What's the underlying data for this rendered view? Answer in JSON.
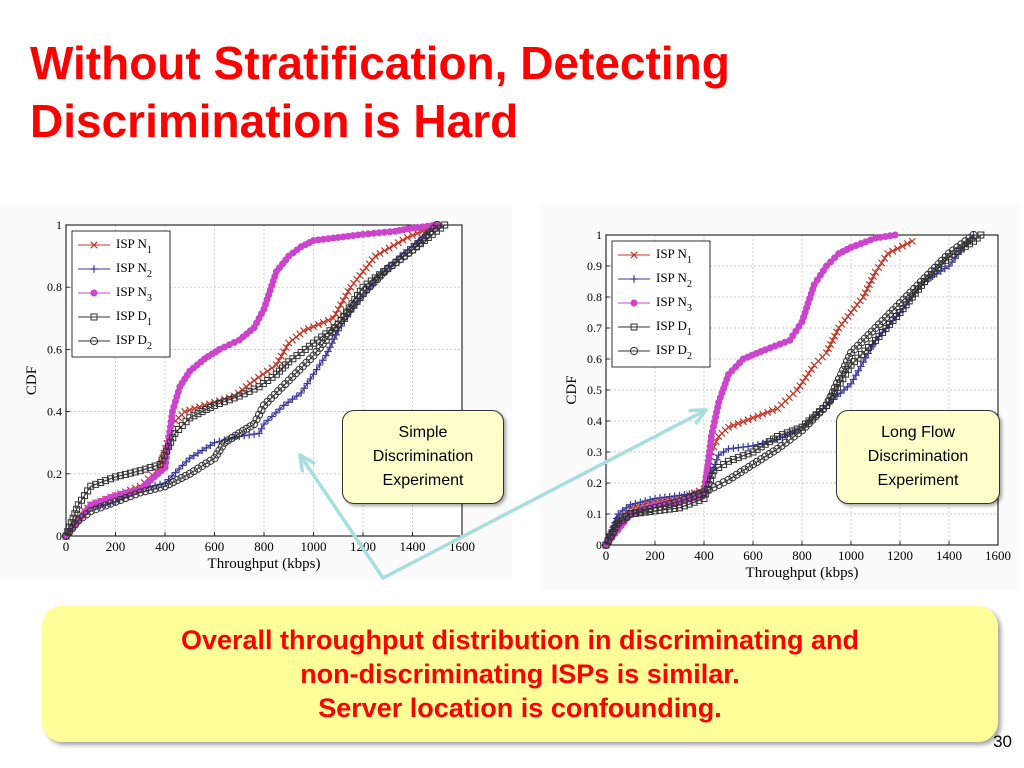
{
  "slide": {
    "title": "Without Stratification, Detecting Discrimination is Hard",
    "page_number": "30",
    "callouts": {
      "left": [
        "Simple",
        "Discrimination",
        "Experiment"
      ],
      "right": [
        "Long Flow",
        "Discrimination",
        "Experiment"
      ]
    },
    "summary": [
      "Overall throughput distribution in discriminating and",
      "non-discriminating ISPs is similar.",
      "Server location is confounding."
    ]
  },
  "colors": {
    "title": "#ff0000",
    "summary_text": "#ff0000",
    "callout_bg": "#ffffcc",
    "summary_bg": "#ffff99",
    "arrow": "#a8dede"
  },
  "chart_data": [
    {
      "type": "line",
      "xlabel": "Throughput (kbps)",
      "ylabel": "CDF",
      "xlim": [
        0,
        1600
      ],
      "ylim": [
        0,
        1
      ],
      "xticks": [
        0,
        200,
        400,
        600,
        800,
        1000,
        1200,
        1400,
        1600
      ],
      "yticks": [
        0,
        0.2,
        0.4,
        0.6,
        0.8,
        1
      ],
      "ytick_labels": [
        "0",
        "0.2",
        "0.4",
        "0.6",
        "0.8",
        "1"
      ],
      "grid": true,
      "legend": "top-left",
      "series": [
        {
          "name": "ISP N",
          "sub": "1",
          "color": "#c0392b",
          "marker": "x",
          "x": [
            0,
            50,
            100,
            200,
            300,
            380,
            430,
            480,
            560,
            680,
            760,
            850,
            900,
            960,
            1080,
            1150,
            1250,
            1380,
            1500
          ],
          "y": [
            0,
            0.06,
            0.1,
            0.13,
            0.16,
            0.22,
            0.36,
            0.4,
            0.42,
            0.45,
            0.5,
            0.55,
            0.62,
            0.66,
            0.7,
            0.8,
            0.9,
            0.96,
            1
          ]
        },
        {
          "name": "ISP N",
          "sub": "2",
          "color": "#3a3a9a",
          "marker": "+",
          "x": [
            0,
            50,
            100,
            200,
            300,
            400,
            500,
            600,
            700,
            780,
            800,
            880,
            950,
            1000,
            1050,
            1100,
            1150,
            1250,
            1350,
            1500
          ],
          "y": [
            0,
            0.05,
            0.09,
            0.11,
            0.15,
            0.17,
            0.25,
            0.3,
            0.32,
            0.33,
            0.36,
            0.42,
            0.46,
            0.52,
            0.58,
            0.66,
            0.72,
            0.82,
            0.9,
            1
          ]
        },
        {
          "name": "ISP N",
          "sub": "3",
          "color": "#cc44cc",
          "marker": "*",
          "x": [
            0,
            50,
            100,
            200,
            300,
            400,
            430,
            460,
            500,
            560,
            620,
            700,
            760,
            800,
            850,
            900,
            950,
            1000,
            1100,
            1200,
            1330,
            1400,
            1500
          ],
          "y": [
            0,
            0.05,
            0.1,
            0.13,
            0.15,
            0.22,
            0.4,
            0.48,
            0.53,
            0.57,
            0.6,
            0.63,
            0.67,
            0.73,
            0.85,
            0.9,
            0.93,
            0.95,
            0.96,
            0.97,
            0.98,
            0.99,
            1
          ]
        },
        {
          "name": "ISP D",
          "sub": "1",
          "color": "#333333",
          "marker": "square",
          "x": [
            0,
            50,
            100,
            200,
            300,
            380,
            440,
            500,
            600,
            700,
            780,
            850,
            900,
            1000,
            1100,
            1200,
            1300,
            1400,
            1480,
            1530
          ],
          "y": [
            0,
            0.1,
            0.16,
            0.19,
            0.21,
            0.23,
            0.33,
            0.38,
            0.42,
            0.45,
            0.48,
            0.52,
            0.56,
            0.62,
            0.68,
            0.8,
            0.86,
            0.92,
            0.97,
            1
          ]
        },
        {
          "name": "ISP D",
          "sub": "2",
          "color": "#333333",
          "marker": "circle",
          "x": [
            0,
            50,
            100,
            200,
            300,
            400,
            500,
            600,
            640,
            700,
            760,
            800,
            900,
            1000,
            1100,
            1200,
            1300,
            1400,
            1500
          ],
          "y": [
            0,
            0.05,
            0.08,
            0.11,
            0.14,
            0.16,
            0.2,
            0.25,
            0.3,
            0.33,
            0.36,
            0.42,
            0.5,
            0.58,
            0.68,
            0.78,
            0.86,
            0.92,
            1
          ]
        }
      ]
    },
    {
      "type": "line",
      "xlabel": "Throughput (kbps)",
      "ylabel": "CDF",
      "xlim": [
        0,
        1600
      ],
      "ylim": [
        0,
        1
      ],
      "xticks": [
        0,
        200,
        400,
        600,
        800,
        1000,
        1200,
        1400,
        1600
      ],
      "yticks": [
        0,
        0.1,
        0.2,
        0.3,
        0.4,
        0.5,
        0.6,
        0.7,
        0.8,
        0.9,
        1
      ],
      "ytick_labels": [
        "0",
        "0.1",
        "0.2",
        "0.3",
        "0.4",
        "0.5",
        "0.6",
        "0.7",
        "0.8",
        "0.9",
        "1"
      ],
      "grid": true,
      "legend": "top-left",
      "series": [
        {
          "name": "ISP N",
          "sub": "1",
          "color": "#c0392b",
          "marker": "x",
          "x": [
            0,
            50,
            100,
            200,
            300,
            400,
            430,
            460,
            500,
            600,
            700,
            780,
            850,
            900,
            950,
            1000,
            1050,
            1100,
            1150,
            1250
          ],
          "y": [
            0,
            0.08,
            0.12,
            0.14,
            0.15,
            0.18,
            0.3,
            0.35,
            0.38,
            0.41,
            0.44,
            0.5,
            0.58,
            0.62,
            0.7,
            0.75,
            0.8,
            0.88,
            0.94,
            0.98
          ]
        },
        {
          "name": "ISP N",
          "sub": "2",
          "color": "#3a3a9a",
          "marker": "+",
          "x": [
            0,
            50,
            100,
            200,
            300,
            400,
            460,
            500,
            600,
            700,
            800,
            900,
            1000,
            1100,
            1200,
            1300,
            1400,
            1500
          ],
          "y": [
            0,
            0.1,
            0.13,
            0.15,
            0.16,
            0.17,
            0.29,
            0.31,
            0.32,
            0.34,
            0.38,
            0.45,
            0.52,
            0.66,
            0.75,
            0.85,
            0.9,
            1
          ]
        },
        {
          "name": "ISP N",
          "sub": "3",
          "color": "#cc44cc",
          "marker": "*",
          "x": [
            0,
            50,
            100,
            200,
            300,
            400,
            430,
            460,
            500,
            560,
            650,
            750,
            800,
            850,
            900,
            950,
            1000,
            1100,
            1180
          ],
          "y": [
            0,
            0.05,
            0.1,
            0.13,
            0.14,
            0.16,
            0.35,
            0.46,
            0.55,
            0.6,
            0.63,
            0.66,
            0.72,
            0.84,
            0.9,
            0.94,
            0.96,
            0.99,
            1
          ]
        },
        {
          "name": "ISP D",
          "sub": "1",
          "color": "#333333",
          "marker": "square",
          "x": [
            0,
            50,
            100,
            200,
            300,
            400,
            440,
            500,
            600,
            700,
            800,
            900,
            1000,
            1100,
            1200,
            1300,
            1400,
            1500,
            1530
          ],
          "y": [
            0,
            0.08,
            0.1,
            0.11,
            0.12,
            0.15,
            0.24,
            0.27,
            0.3,
            0.35,
            0.38,
            0.45,
            0.58,
            0.66,
            0.75,
            0.85,
            0.93,
            0.98,
            1
          ]
        },
        {
          "name": "ISP D",
          "sub": "2",
          "color": "#333333",
          "marker": "circle",
          "x": [
            0,
            50,
            100,
            200,
            300,
            400,
            500,
            600,
            700,
            800,
            900,
            960,
            1000,
            1100,
            1200,
            1300,
            1400,
            1500
          ],
          "y": [
            0,
            0.07,
            0.1,
            0.12,
            0.14,
            0.17,
            0.21,
            0.26,
            0.31,
            0.37,
            0.45,
            0.55,
            0.62,
            0.7,
            0.78,
            0.86,
            0.94,
            1
          ]
        }
      ]
    }
  ]
}
